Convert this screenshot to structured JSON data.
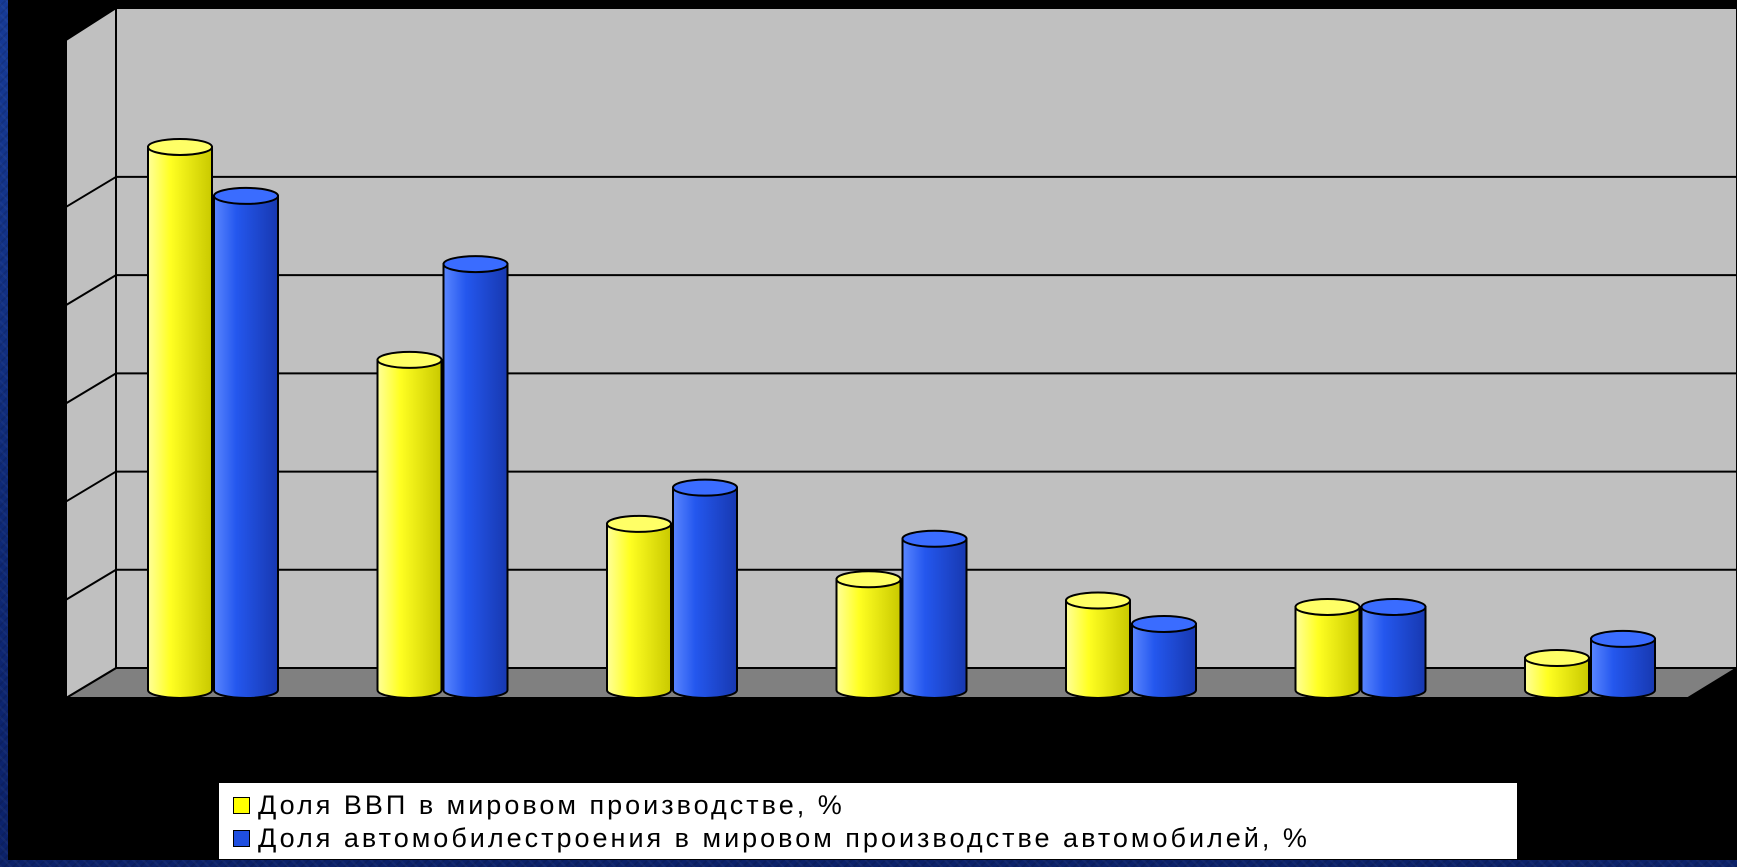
{
  "chart_data": {
    "type": "bar",
    "categories": [
      "",
      "",
      "",
      "",
      "",
      "",
      ""
    ],
    "series": [
      {
        "name": "Доля ВВП в мировом производстве, %",
        "color": "#ffff00",
        "values": [
          25.5,
          15.5,
          7.8,
          5.2,
          4.2,
          3.9,
          1.5
        ]
      },
      {
        "name": "Доля автомобилестроения в мировом производстве автомобилей, %",
        "color": "#1f4fe0",
        "values": [
          23.2,
          20.0,
          9.5,
          7.1,
          3.1,
          3.9,
          2.4
        ]
      }
    ],
    "title": "",
    "xlabel": "",
    "ylabel": "",
    "ylim": [
      0,
      30
    ],
    "y_gridlines": [
      5,
      10,
      15,
      20,
      25
    ],
    "grid": true,
    "legend_position": "bottom",
    "style": "3d-cylinder",
    "wall_color": "#c0c0c0",
    "floor_color": "#808080"
  }
}
